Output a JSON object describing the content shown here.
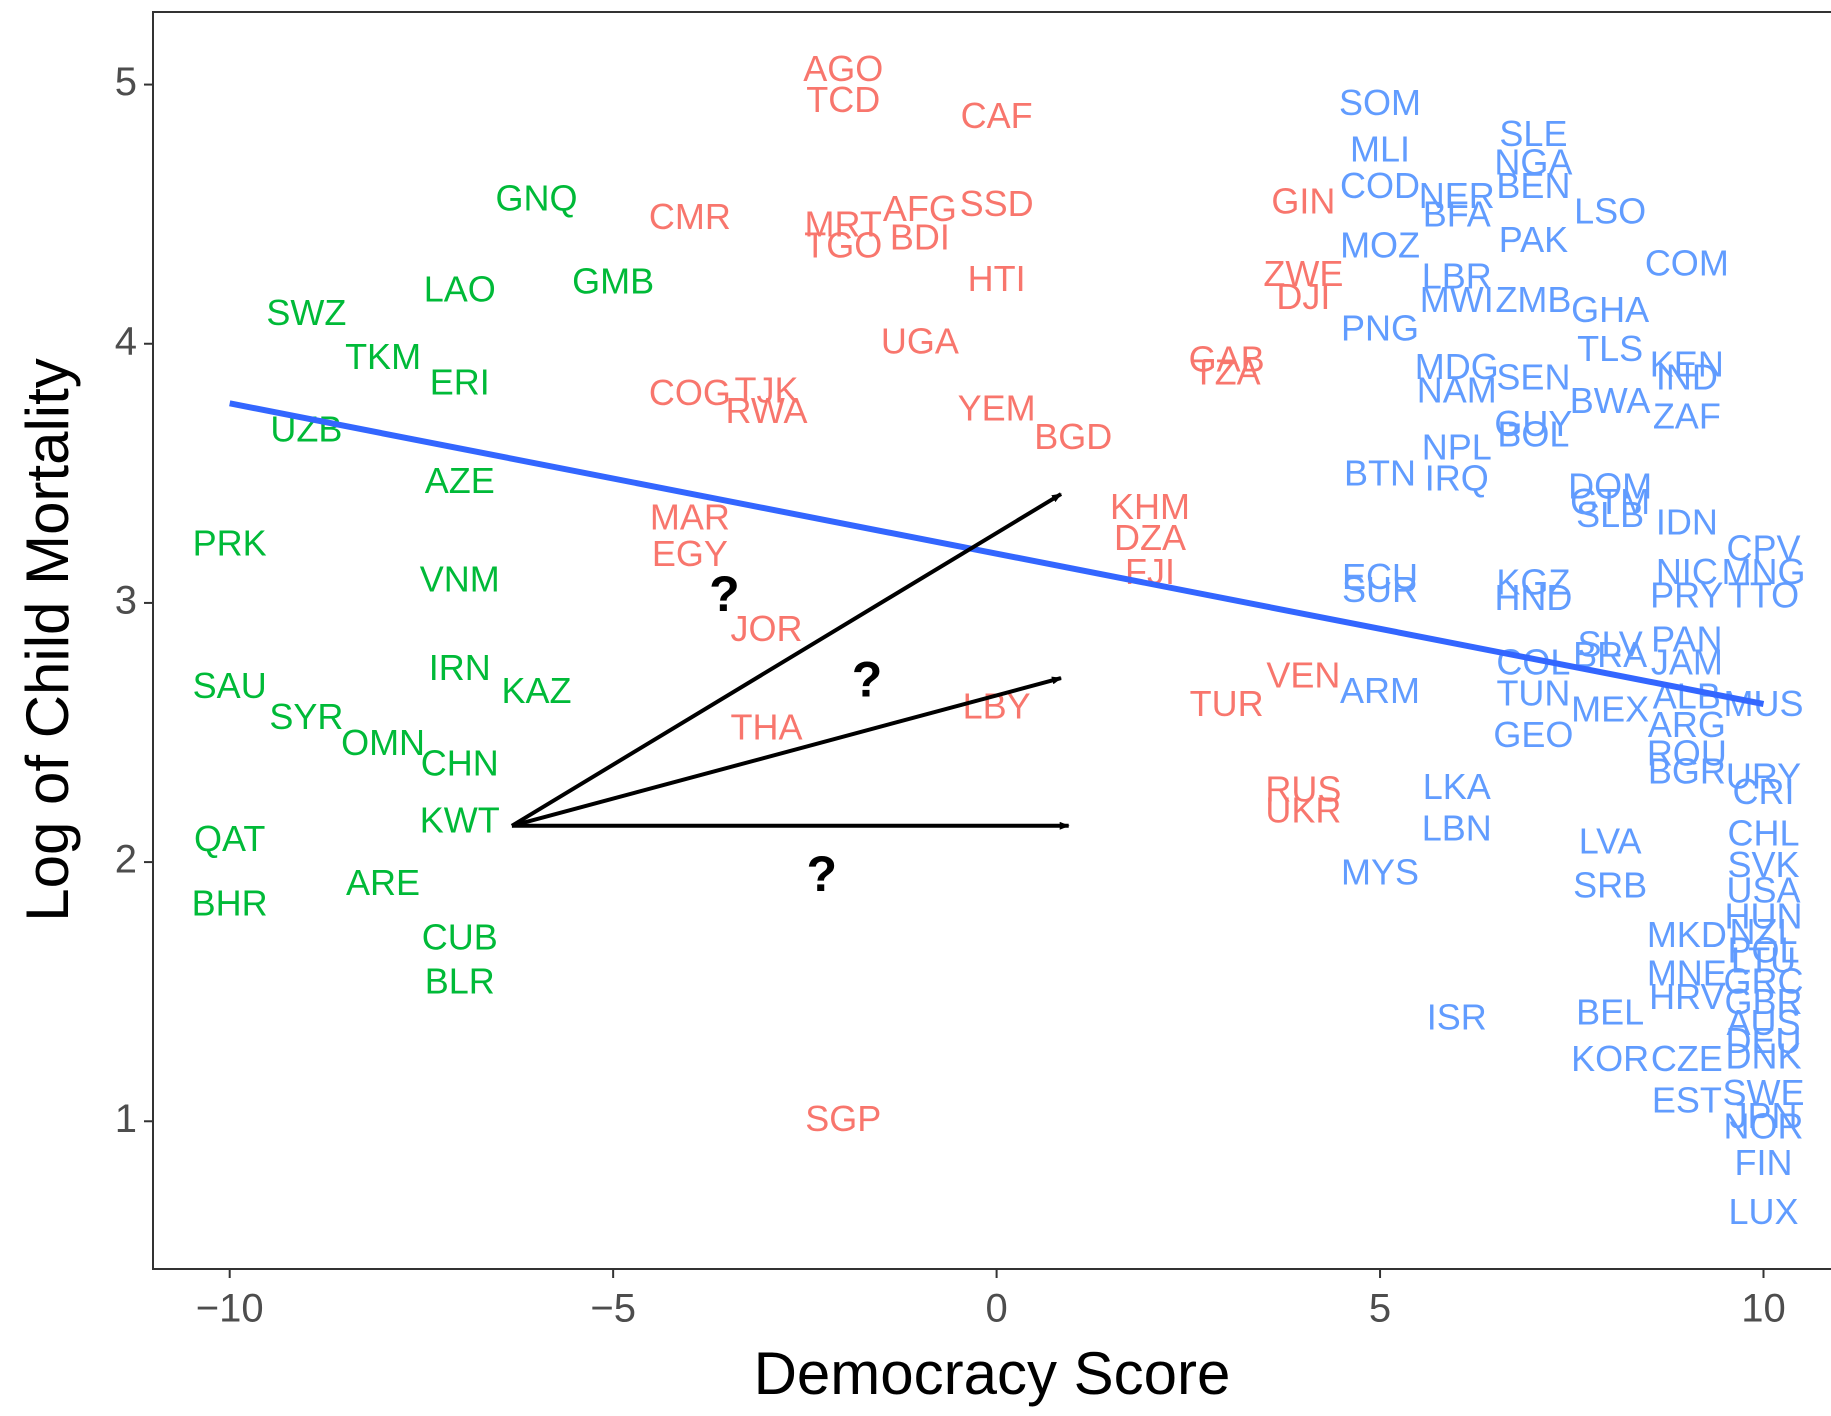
{
  "chart_data": {
    "type": "scatter",
    "xlabel": "Democracy Score",
    "ylabel": "Log of Child Mortality",
    "xlim": [
      -11.0,
      10.88
    ],
    "ylim": [
      0.43,
      5.28
    ],
    "xticks": [
      {
        "value": -10,
        "label": "−10"
      },
      {
        "value": -5,
        "label": "−5"
      },
      0,
      5,
      10
    ],
    "yticks": [
      1,
      2,
      3,
      4,
      5
    ],
    "grid": false,
    "series": [
      {
        "color": "#00ba38",
        "labels": [
          "GNQ",
          "LAO",
          "GMB",
          "SWZ",
          "TKM",
          "ERI",
          "UZB",
          "AZE",
          "PRK",
          "VNM",
          "IRN",
          "KAZ",
          "SAU",
          "SYR",
          "OMN",
          "CHN",
          "KWT",
          "QAT",
          "BHR",
          "ARE",
          "CUB",
          "BLR"
        ],
        "x": [
          -6,
          -7,
          -5,
          -9,
          -8,
          -7,
          -9,
          -7,
          -10,
          -7,
          -7,
          -6,
          -10,
          -9,
          -8,
          -7,
          -7,
          -10,
          -10,
          -8,
          -7,
          -7
        ],
        "values": [
          4.55,
          4.2,
          4.23,
          4.11,
          3.94,
          3.84,
          3.66,
          3.46,
          3.22,
          3.08,
          2.74,
          2.65,
          2.67,
          2.55,
          2.45,
          2.37,
          2.15,
          2.08,
          1.83,
          1.91,
          1.7,
          1.53
        ]
      },
      {
        "color": "#f8766d",
        "labels": [
          "AGO",
          "TCD",
          "CAF",
          "CMR",
          "MRT",
          "AFG",
          "SSD",
          "BDI",
          "TGO",
          "HTI",
          "GIN",
          "ZWE",
          "DJI",
          "UGA",
          "GAB",
          "TZA",
          "COG",
          "TJK",
          "RWA",
          "YEM",
          "BGD",
          "KHM",
          "DZA",
          "FJI",
          "MAR",
          "EGY",
          "JOR",
          "THA",
          "LBY",
          "VEN",
          "TUR",
          "RUS",
          "UKR",
          "SGP"
        ],
        "x": [
          -2,
          -2,
          0,
          -4,
          -2,
          -1,
          0,
          -1,
          -2,
          0,
          4,
          4,
          4,
          -1,
          3,
          3,
          -4,
          -3,
          -3,
          0,
          1,
          2,
          2,
          2,
          -4,
          -4,
          -3,
          -3,
          0,
          4,
          3,
          4,
          4,
          -2
        ],
        "values": [
          5.05,
          4.93,
          4.87,
          4.48,
          4.45,
          4.51,
          4.53,
          4.4,
          4.37,
          4.24,
          4.54,
          4.26,
          4.17,
          4.0,
          3.93,
          3.88,
          3.8,
          3.81,
          3.73,
          3.74,
          3.63,
          3.36,
          3.24,
          3.11,
          3.32,
          3.18,
          2.89,
          2.51,
          2.59,
          2.71,
          2.6,
          2.27,
          2.19,
          1.0
        ]
      },
      {
        "color": "#619cff",
        "labels": [
          "SOM",
          "MLI",
          "COD",
          "NER",
          "BFA",
          "MOZ",
          "SLE",
          "NGA",
          "BEN",
          "LSO",
          "PAK",
          "COM",
          "LBR",
          "MWI",
          "ZMB",
          "GHA",
          "PNG",
          "TLS",
          "KEN",
          "IND",
          "MDG",
          "NAM",
          "SEN",
          "BWA",
          "ZAF",
          "GUY",
          "BOL",
          "NPL",
          "IRQ",
          "BTN",
          "DOM",
          "GTM",
          "SLB",
          "IDN",
          "CPV",
          "NIC",
          "MNG",
          "PRY",
          "TTO",
          "ECU",
          "SUR",
          "KGZ",
          "HND",
          "SLV",
          "PAN",
          "BRA",
          "JAM",
          "COL",
          "ARM",
          "TUN",
          "MEX",
          "ALB",
          "MUS",
          "ARG",
          "GEO",
          "ROU",
          "BGR",
          "URY",
          "CRI",
          "LKA",
          "LBN",
          "LVA",
          "SRB",
          "MYS",
          "CHL",
          "SVK",
          "USA",
          "HUN",
          "NZL",
          "MKD",
          "POL",
          "LTU",
          "MNE",
          "GRC",
          "HRV",
          "ISR",
          "BEL",
          "GBR",
          "AUS",
          "KOR",
          "CZE",
          "DEU",
          "DNK",
          "EST",
          "SWE",
          "JPN",
          "NOR",
          "FIN",
          "LUX"
        ],
        "x": [
          5,
          5,
          5,
          6,
          6,
          5,
          7,
          7,
          7,
          8,
          7,
          9,
          6,
          6,
          7,
          8,
          5,
          8,
          9,
          9,
          6,
          6,
          7,
          8,
          9,
          7,
          7,
          6,
          6,
          5,
          8,
          8,
          8,
          9,
          10,
          9,
          10,
          9,
          10,
          5,
          5,
          7,
          7,
          8,
          9,
          8,
          9,
          7,
          5,
          7,
          8,
          9,
          10,
          9,
          7,
          9,
          9,
          10,
          10,
          6,
          6,
          8,
          8,
          5,
          10,
          10,
          10,
          10,
          10,
          9,
          10,
          10,
          9,
          10,
          9,
          6,
          8,
          10,
          10,
          8,
          9,
          10,
          10,
          9,
          10,
          10,
          10,
          10,
          10
        ],
        "values": [
          4.92,
          4.74,
          4.6,
          4.56,
          4.49,
          4.37,
          4.8,
          4.69,
          4.6,
          4.5,
          4.39,
          4.3,
          4.25,
          4.16,
          4.16,
          4.12,
          4.05,
          3.97,
          3.91,
          3.86,
          3.9,
          3.81,
          3.86,
          3.77,
          3.71,
          3.68,
          3.64,
          3.59,
          3.47,
          3.49,
          3.44,
          3.38,
          3.33,
          3.3,
          3.2,
          3.11,
          3.11,
          3.02,
          3.02,
          3.09,
          3.04,
          3.07,
          3.01,
          2.83,
          2.85,
          2.79,
          2.76,
          2.76,
          2.65,
          2.64,
          2.58,
          2.63,
          2.6,
          2.52,
          2.48,
          2.41,
          2.34,
          2.32,
          2.26,
          2.28,
          2.12,
          2.07,
          1.9,
          1.95,
          2.1,
          1.98,
          1.88,
          1.78,
          1.72,
          1.71,
          1.65,
          1.61,
          1.56,
          1.53,
          1.47,
          1.39,
          1.41,
          1.45,
          1.37,
          1.23,
          1.23,
          1.3,
          1.24,
          1.07,
          1.1,
          1.01,
          0.97,
          0.83,
          0.64
        ]
      }
    ],
    "trend_line": {
      "color": "#3366ff",
      "x": [
        -10,
        10
      ],
      "values": [
        3.77,
        2.61
      ]
    },
    "annotations": [
      {
        "text": "?",
        "x": -3.55,
        "y": 3.02
      },
      {
        "text": "?",
        "x": -1.69,
        "y": 2.69
      },
      {
        "text": "?",
        "x": -2.28,
        "y": 1.94
      }
    ],
    "arrows": [
      {
        "from": [
          -6.32,
          2.14
        ],
        "to": [
          0.84,
          3.42
        ]
      },
      {
        "from": [
          -6.32,
          2.14
        ],
        "to": [
          0.84,
          2.71
        ]
      },
      {
        "from": [
          -6.32,
          2.14
        ],
        "to": [
          0.94,
          2.14
        ]
      }
    ]
  }
}
